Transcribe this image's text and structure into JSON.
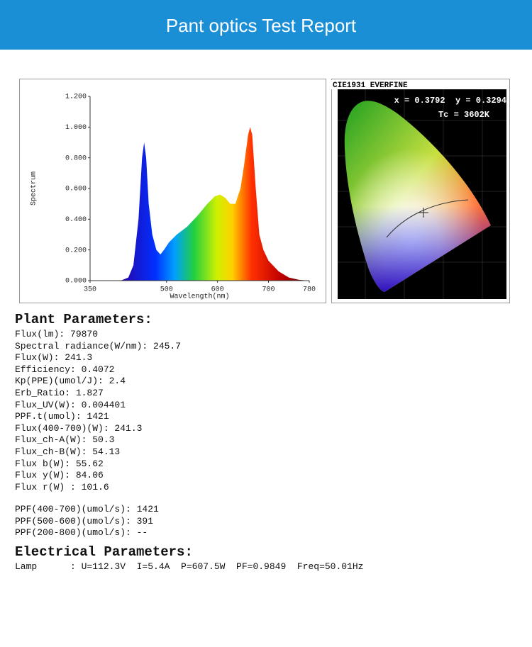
{
  "header": {
    "title": "Pant optics Test Report"
  },
  "chart_data": {
    "type": "area",
    "ylabel": "Spectrum",
    "xlabel": "Wavelength(nm)",
    "x": [
      410,
      425,
      435,
      445,
      452,
      456,
      460,
      465,
      472,
      480,
      488,
      495,
      505,
      520,
      540,
      560,
      580,
      595,
      605,
      615,
      625,
      635,
      645,
      652,
      660,
      664,
      668,
      675,
      682,
      690,
      700,
      720,
      740,
      760,
      780
    ],
    "values": [
      0,
      0.02,
      0.1,
      0.4,
      0.8,
      0.9,
      0.8,
      0.5,
      0.3,
      0.2,
      0.17,
      0.2,
      0.25,
      0.3,
      0.35,
      0.42,
      0.5,
      0.55,
      0.56,
      0.54,
      0.5,
      0.5,
      0.6,
      0.75,
      0.95,
      1.0,
      0.95,
      0.6,
      0.3,
      0.2,
      0.13,
      0.06,
      0.02,
      0.005,
      0
    ],
    "xlim": [
      350,
      780
    ],
    "ylim": [
      0,
      1.2
    ],
    "xticks": [
      350,
      500,
      600,
      700,
      780
    ],
    "yticks": [
      {
        "value": 0,
        "label": "0.000"
      },
      {
        "value": 0.2,
        "label": "0.200"
      },
      {
        "value": 0.4,
        "label": "0.400"
      },
      {
        "value": 0.6,
        "label": "0.600"
      },
      {
        "value": 0.8,
        "label": "0.800"
      },
      {
        "value": 1.0,
        "label": "1.000"
      },
      {
        "value": 1.2,
        "label": "1.200"
      }
    ]
  },
  "cie": {
    "title": "CIE1931 EVERFINE",
    "coords": "x = 0.3792  y = 0.3294",
    "tc": "Tc = 3602K"
  },
  "plant": {
    "title": "Plant Parameters:",
    "lines": [
      "Flux(lm): 79870",
      "Spectral radiance(W/nm): 245.7",
      "Flux(W): 241.3",
      "Efficiency: 0.4072",
      "Kp(PPE)(umol/J): 2.4",
      "Erb_Ratio: 1.827",
      "Flux_UV(W): 0.004401",
      "PPF.t(umol): 1421",
      "Flux(400-700)(W): 241.3",
      "Flux_ch-A(W): 50.3",
      "Flux_ch-B(W): 54.13",
      "Flux b(W): 55.62",
      "Flux y(W): 84.06",
      "Flux r(W) : 101.6"
    ],
    "ppf_lines": [
      "PPF(400-700)(umol/s): 1421",
      "PPF(500-600)(umol/s): 391",
      "PPF(200-800)(umol/s): --"
    ]
  },
  "electrical": {
    "title": "Electrical Parameters:",
    "lines": [
      "Lamp      : U=112.3V  I=5.4A  P=607.5W  PF=0.9849  Freq=50.01Hz"
    ]
  }
}
